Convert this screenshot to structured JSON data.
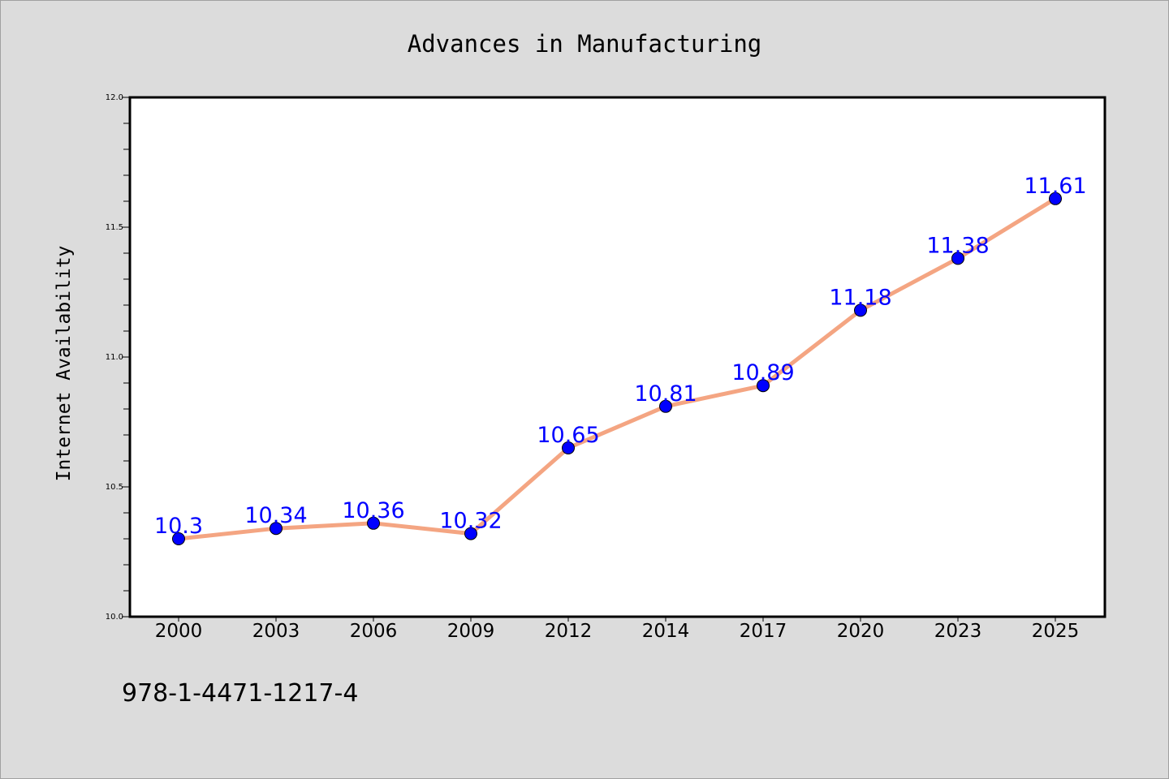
{
  "chart_data": {
    "type": "line",
    "title": "Advances in Manufacturing",
    "xlabel": "",
    "ylabel": "Internet Availability",
    "categories": [
      "2000",
      "2003",
      "2006",
      "2009",
      "2012",
      "2014",
      "2017",
      "2020",
      "2023",
      "2025"
    ],
    "series": [
      {
        "values": [
          10.3,
          10.34,
          10.36,
          10.32,
          10.65,
          10.81,
          10.89,
          11.18,
          11.38,
          11.61
        ],
        "labels": [
          "10.3",
          "10.34",
          "10.36",
          "10.32",
          "10.65",
          "10.81",
          "10.89",
          "11.18",
          "11.38",
          "11.61"
        ],
        "line_color": "#f4a582",
        "marker_color": "#0000ff",
        "label_color": "#0000ff"
      }
    ],
    "ylim": [
      10.0,
      12.0
    ],
    "yticks": [
      "10.0",
      "10.5",
      "11.0",
      "11.5",
      "12.0"
    ],
    "grid": false,
    "legend": "none"
  },
  "footer": {
    "isbn": "978-1-4471-1217-4"
  },
  "colors": {
    "background": "#dcdcdc",
    "plot_background": "#ffffff"
  }
}
